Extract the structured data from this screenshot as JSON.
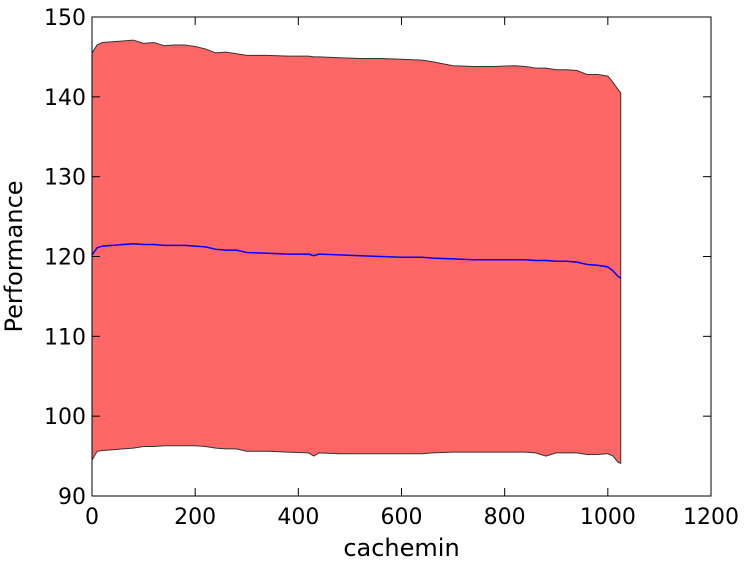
{
  "chart_data": {
    "type": "area",
    "title": "",
    "xlabel": "cachemin",
    "ylabel": "Performance",
    "xlim": [
      0,
      1200
    ],
    "ylim": [
      90,
      150
    ],
    "xticks": [
      0,
      200,
      400,
      600,
      800,
      1000,
      1200
    ],
    "yticks": [
      90,
      100,
      110,
      120,
      130,
      140,
      150
    ],
    "grid": false,
    "legend": "none",
    "colors": {
      "band_fill": "#ff6666",
      "band_edge": "#333333",
      "mean_line": "#0000ff"
    },
    "x": [
      0,
      10,
      20,
      40,
      60,
      80,
      100,
      120,
      140,
      160,
      180,
      200,
      220,
      240,
      260,
      280,
      300,
      340,
      380,
      420,
      430,
      440,
      480,
      520,
      560,
      600,
      640,
      660,
      700,
      740,
      780,
      820,
      840,
      860,
      880,
      900,
      920,
      940,
      960,
      980,
      1000,
      1010,
      1020,
      1025
    ],
    "series": [
      {
        "values": [
          145.5,
          146.5,
          146.8,
          146.9,
          147.0,
          147.1,
          146.7,
          146.8,
          146.4,
          146.5,
          146.5,
          146.3,
          146.0,
          145.5,
          145.6,
          145.4,
          145.2,
          145.2,
          145.1,
          145.1,
          145.0,
          145.0,
          144.9,
          144.8,
          144.8,
          144.7,
          144.6,
          144.4,
          143.9,
          143.8,
          143.8,
          143.9,
          143.8,
          143.6,
          143.6,
          143.4,
          143.4,
          143.3,
          142.8,
          142.8,
          142.6,
          141.8,
          140.9,
          140.5
        ]
      },
      {
        "values": [
          120.2,
          121.1,
          121.3,
          121.4,
          121.5,
          121.6,
          121.5,
          121.5,
          121.4,
          121.4,
          121.4,
          121.3,
          121.2,
          120.9,
          120.8,
          120.8,
          120.5,
          120.4,
          120.3,
          120.3,
          120.1,
          120.3,
          120.2,
          120.1,
          120.0,
          119.9,
          119.9,
          119.8,
          119.7,
          119.6,
          119.6,
          119.6,
          119.6,
          119.5,
          119.5,
          119.4,
          119.4,
          119.3,
          119.0,
          118.9,
          118.7,
          118.2,
          117.5,
          117.3
        ]
      },
      {
        "values": [
          94.5,
          95.6,
          95.7,
          95.8,
          95.9,
          96.0,
          96.2,
          96.2,
          96.3,
          96.3,
          96.3,
          96.3,
          96.2,
          96.0,
          95.9,
          95.9,
          95.6,
          95.6,
          95.5,
          95.4,
          95.0,
          95.4,
          95.3,
          95.3,
          95.3,
          95.3,
          95.3,
          95.4,
          95.5,
          95.5,
          95.5,
          95.5,
          95.5,
          95.4,
          95.0,
          95.4,
          95.4,
          95.4,
          95.2,
          95.2,
          95.3,
          95.0,
          94.2,
          94.1
        ]
      }
    ]
  }
}
